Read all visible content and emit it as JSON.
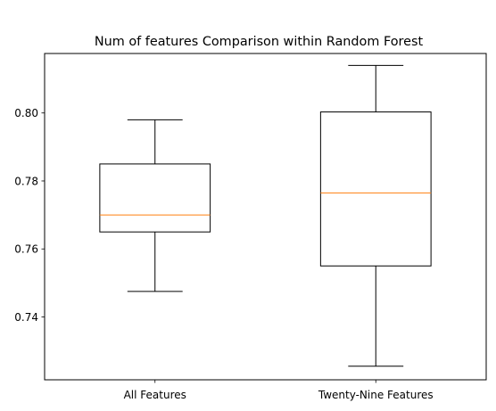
{
  "chart_data": {
    "type": "boxplot",
    "title": "Num of features Comparison within Random Forest",
    "xlabel": "",
    "ylabel": "",
    "categories": [
      "All Features",
      "Twenty-Nine Features"
    ],
    "boxes": [
      {
        "label": "All Features",
        "whisker_low": 0.7475,
        "q1": 0.765,
        "median": 0.77,
        "q3": 0.785,
        "whisker_high": 0.798
      },
      {
        "label": "Twenty-Nine Features",
        "whisker_low": 0.7255,
        "q1": 0.755,
        "median": 0.7765,
        "q3": 0.8003,
        "whisker_high": 0.814
      }
    ],
    "ylim": [
      0.7215,
      0.8175
    ],
    "yticks": [
      0.74,
      0.76,
      0.78,
      0.8
    ],
    "ytick_labels": [
      "0.74",
      "0.76",
      "0.78",
      "0.80"
    ],
    "grid": false,
    "colors": {
      "box": "#000000",
      "median": "#ff7f0e",
      "axes": "#000000"
    }
  }
}
